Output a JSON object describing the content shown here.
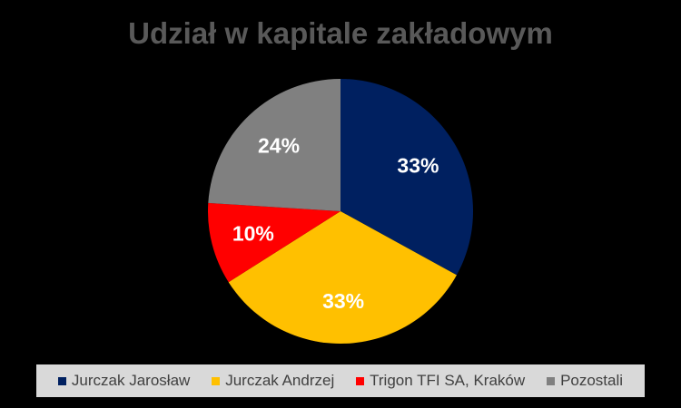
{
  "chart_data": {
    "type": "pie",
    "title": "Udział w kapitale zakładowym",
    "categories": [
      "Jurczak Jarosław",
      "Jurczak Andrzej",
      "Trigon TFI SA, Kraków",
      "Pozostali"
    ],
    "values": [
      33,
      33,
      10,
      24
    ],
    "labels": [
      "33%",
      "33%",
      "10%",
      "24%"
    ],
    "colors": [
      "#002060",
      "#ffc000",
      "#ff0000",
      "#808080"
    ],
    "legend": "bottom",
    "start_angle": "top",
    "direction": "clockwise"
  }
}
